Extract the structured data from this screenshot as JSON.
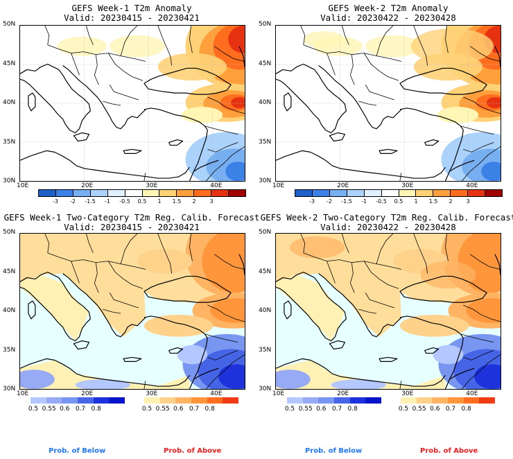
{
  "panels": [
    {
      "title": "GEFS Week-1 T2m Anomaly",
      "valid": "Valid: 20230415 - 20230421"
    },
    {
      "title": "GEFS Week-2 T2m Anomaly",
      "valid": "Valid: 20230422 - 20230428"
    },
    {
      "title": "GEFS Week-1 Two-Category T2m Reg. Calib. Forecast",
      "valid": "Valid: 20230415 - 20230421"
    },
    {
      "title": "GEFS Week-2 Two-Category T2m Reg. Calib. Forecast",
      "valid": "Valid: 20230422 - 20230428"
    }
  ],
  "lat_labels": [
    "50N",
    "45N",
    "40N",
    "35N",
    "30N"
  ],
  "lon_labels": [
    "10E",
    "20E",
    "30E",
    "40E"
  ],
  "anomaly_colorbar": {
    "labels": [
      "-3",
      "-2",
      "-1.5",
      "-1",
      "-0.5",
      "0.5",
      "1",
      "1.5",
      "2",
      "3"
    ],
    "colors": [
      "#1f5fc8",
      "#3c82e6",
      "#78aff0",
      "#aad2fa",
      "#e1f0ff",
      "#ffffff",
      "#fff5b4",
      "#ffd278",
      "#ffa03c",
      "#ff6e1e",
      "#e63210",
      "#a00000"
    ]
  },
  "prob_below": {
    "labels": [
      "0.5",
      "0.55",
      "0.6",
      "0.7",
      "0.8"
    ],
    "colors": [
      "#b4c8ff",
      "#96aaf5",
      "#7896f0",
      "#4664e6",
      "#1e32dc",
      "#0a14c8"
    ]
  },
  "prob_above": {
    "labels": [
      "0.5",
      "0.55",
      "0.6",
      "0.7",
      "0.8"
    ],
    "colors": [
      "#fff0b4",
      "#ffd28c",
      "#ffb464",
      "#ff963c",
      "#ff6e1e",
      "#f03c14"
    ]
  },
  "legend": {
    "below": "Prob. of Below",
    "above": "Prob. of Above"
  },
  "colors": {
    "below_text": "#1e78ff",
    "above_text": "#f01e1e",
    "near_normal": "#e6ffff"
  }
}
